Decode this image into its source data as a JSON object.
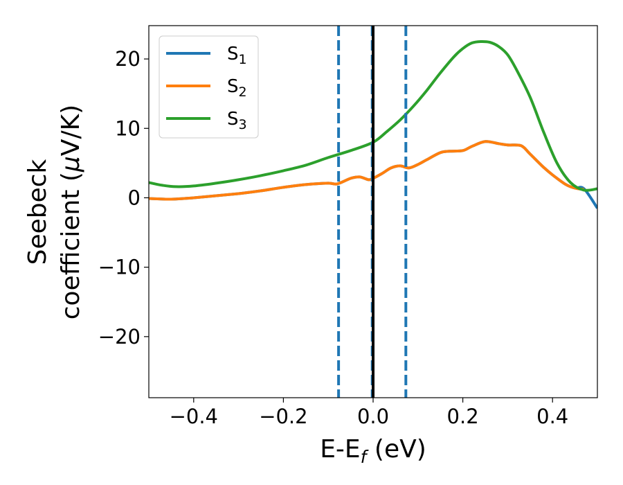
{
  "chart_data": {
    "type": "line",
    "xlabel": "E-E",
    "xlabel_sub": "f",
    "xlabel_unit": " (eV)",
    "ylabel_line1": "Seebeck",
    "ylabel_line2_prefix": "coefficient  (",
    "ylabel_mu": "μ",
    "ylabel_line2_suffix": "V/K)",
    "xlim": [
      -0.5,
      0.5
    ],
    "ylim": [
      -28.8,
      24.8
    ],
    "xticks": [
      -0.4,
      -0.2,
      0.0,
      0.2,
      0.4
    ],
    "xtick_labels": [
      "−0.4",
      "−0.2",
      "0.0",
      "0.2",
      "0.4"
    ],
    "yticks": [
      -20,
      -10,
      0,
      10,
      20
    ],
    "ytick_labels": [
      "−20",
      "−10",
      "0",
      "10",
      "20"
    ],
    "legend_position": "top-left",
    "grid": false,
    "series": [
      {
        "name": "S",
        "sub": "1",
        "color": "#1f77b4",
        "x": [
          -0.5,
          -0.45,
          -0.4,
          -0.35,
          -0.3,
          -0.25,
          -0.2,
          -0.15,
          -0.1,
          -0.08,
          -0.05,
          -0.03,
          -0.01,
          0.0,
          0.02,
          0.04,
          0.06,
          0.08,
          0.1,
          0.12,
          0.15,
          0.17,
          0.2,
          0.22,
          0.25,
          0.28,
          0.3,
          0.33,
          0.35,
          0.38,
          0.4,
          0.43,
          0.45,
          0.47,
          0.5
        ],
        "y": [
          -0.1,
          -0.2,
          0.0,
          0.3,
          0.6,
          1.0,
          1.5,
          1.9,
          2.1,
          2.0,
          2.8,
          3.0,
          2.6,
          2.8,
          3.5,
          4.3,
          4.6,
          4.3,
          4.8,
          5.5,
          6.5,
          6.7,
          6.8,
          7.4,
          8.1,
          7.8,
          7.6,
          7.5,
          6.3,
          4.4,
          3.3,
          1.9,
          1.4,
          1.3,
          -1.5
        ]
      },
      {
        "name": "S",
        "sub": "2",
        "color": "#ff7f0e",
        "x": [
          -0.5,
          -0.45,
          -0.4,
          -0.35,
          -0.3,
          -0.25,
          -0.2,
          -0.15,
          -0.1,
          -0.08,
          -0.05,
          -0.03,
          -0.01,
          0.0,
          0.02,
          0.04,
          0.06,
          0.08,
          0.1,
          0.12,
          0.15,
          0.17,
          0.2,
          0.22,
          0.25,
          0.28,
          0.3,
          0.33,
          0.35,
          0.38,
          0.4,
          0.43,
          0.45,
          0.47
        ],
        "y": [
          -0.1,
          -0.2,
          0.0,
          0.3,
          0.6,
          1.0,
          1.5,
          1.9,
          2.1,
          2.0,
          2.8,
          3.0,
          2.6,
          2.8,
          3.5,
          4.3,
          4.6,
          4.3,
          4.8,
          5.5,
          6.5,
          6.7,
          6.8,
          7.4,
          8.1,
          7.8,
          7.6,
          7.5,
          6.3,
          4.4,
          3.3,
          1.9,
          1.4,
          1.2
        ]
      },
      {
        "name": "S",
        "sub": "3",
        "color": "#2ca02c",
        "x": [
          -0.5,
          -0.47,
          -0.44,
          -0.4,
          -0.35,
          -0.3,
          -0.25,
          -0.2,
          -0.15,
          -0.1,
          -0.05,
          0.0,
          0.03,
          0.06,
          0.09,
          0.12,
          0.15,
          0.18,
          0.2,
          0.22,
          0.24,
          0.26,
          0.28,
          0.3,
          0.32,
          0.35,
          0.38,
          0.41,
          0.44,
          0.47,
          0.5
        ],
        "y": [
          2.2,
          1.8,
          1.6,
          1.7,
          2.1,
          2.6,
          3.2,
          3.9,
          4.7,
          5.8,
          6.8,
          8.0,
          9.5,
          11.2,
          13.2,
          15.5,
          18.0,
          20.3,
          21.5,
          22.3,
          22.5,
          22.4,
          21.8,
          20.6,
          18.4,
          14.5,
          9.5,
          5.0,
          2.2,
          1.1,
          1.3
        ]
      }
    ],
    "vlines": [
      {
        "x": -0.077,
        "style": "dashed",
        "color": "#1f77b4"
      },
      {
        "x": -0.002,
        "style": "dashed",
        "color": "#1f77b4"
      },
      {
        "x": 0.0,
        "style": "solid",
        "color": "#000000"
      },
      {
        "x": 0.073,
        "style": "dashed",
        "color": "#1f77b4"
      }
    ]
  }
}
